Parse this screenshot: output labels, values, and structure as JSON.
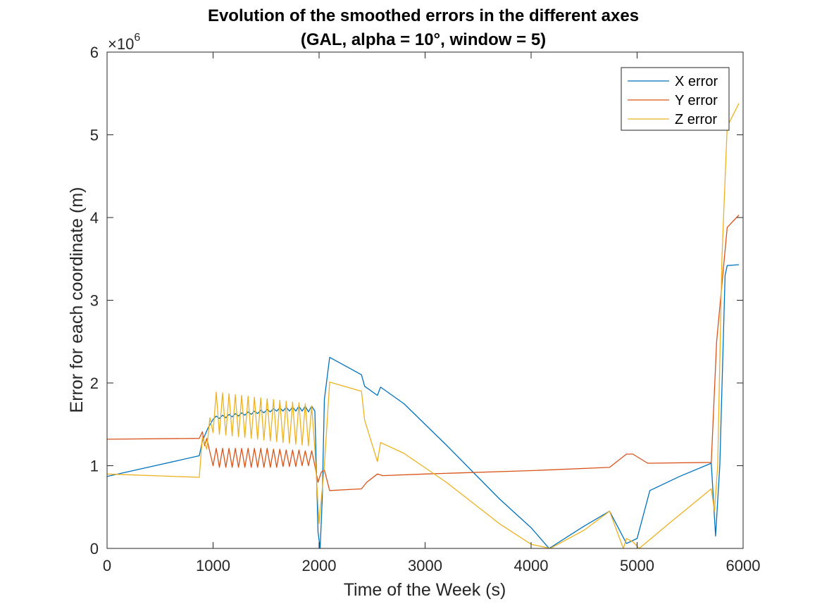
{
  "chart_data": {
    "type": "line",
    "title": "Evolution of the smoothed errors in the different axes",
    "subtitle": "(GAL, alpha = 10°, window = 5)",
    "xlabel": "Time of the Week (s)",
    "ylabel": "Error for each coordinate (m)",
    "xlim": [
      0,
      6000
    ],
    "ylim": [
      0,
      6000000
    ],
    "xticks": [
      "0",
      "1000",
      "2000",
      "3000",
      "4000",
      "5000",
      "6000"
    ],
    "yticks": [
      "0",
      "1",
      "2",
      "3",
      "4",
      "5",
      "6"
    ],
    "exponent_base": "×10",
    "exponent_power": "6",
    "grid": false,
    "legend_position": "top-right",
    "series": [
      {
        "name": "X error",
        "color": "#0072BD",
        "points": [
          [
            0,
            870000
          ],
          [
            870,
            1120000
          ],
          [
            900,
            1300000
          ],
          [
            950,
            1450000
          ],
          [
            1000,
            1560000
          ],
          [
            1030,
            1600000
          ],
          [
            1060,
            1570000
          ],
          [
            1090,
            1610000
          ],
          [
            1120,
            1580000
          ],
          [
            1150,
            1620000
          ],
          [
            1180,
            1590000
          ],
          [
            1210,
            1630000
          ],
          [
            1240,
            1600000
          ],
          [
            1270,
            1640000
          ],
          [
            1300,
            1610000
          ],
          [
            1330,
            1650000
          ],
          [
            1360,
            1620000
          ],
          [
            1390,
            1660000
          ],
          [
            1420,
            1630000
          ],
          [
            1450,
            1670000
          ],
          [
            1480,
            1640000
          ],
          [
            1510,
            1680000
          ],
          [
            1540,
            1650000
          ],
          [
            1570,
            1690000
          ],
          [
            1600,
            1660000
          ],
          [
            1630,
            1700000
          ],
          [
            1660,
            1660000
          ],
          [
            1690,
            1710000
          ],
          [
            1720,
            1660000
          ],
          [
            1750,
            1710000
          ],
          [
            1780,
            1660000
          ],
          [
            1810,
            1720000
          ],
          [
            1840,
            1660000
          ],
          [
            1870,
            1720000
          ],
          [
            1900,
            1650000
          ],
          [
            1930,
            1720000
          ],
          [
            1960,
            1660000
          ],
          [
            1990,
            200000
          ],
          [
            2010,
            0
          ],
          [
            2030,
            600000
          ],
          [
            2050,
            1800000
          ],
          [
            2100,
            2310000
          ],
          [
            2400,
            2100000
          ],
          [
            2430,
            1960000
          ],
          [
            2550,
            1850000
          ],
          [
            2580,
            1950000
          ],
          [
            2800,
            1750000
          ],
          [
            3200,
            1250000
          ],
          [
            3700,
            600000
          ],
          [
            4000,
            250000
          ],
          [
            4170,
            0
          ],
          [
            4500,
            270000
          ],
          [
            4740,
            450000
          ],
          [
            4900,
            60000
          ],
          [
            5000,
            120000
          ],
          [
            5120,
            700000
          ],
          [
            5400,
            870000
          ],
          [
            5700,
            1030000
          ],
          [
            5740,
            150000
          ],
          [
            5780,
            1000000
          ],
          [
            5830,
            3300000
          ],
          [
            5850,
            3420000
          ],
          [
            5960,
            3430000
          ]
        ]
      },
      {
        "name": "Y error",
        "color": "#D95319",
        "points": [
          [
            0,
            1320000
          ],
          [
            870,
            1330000
          ],
          [
            900,
            1410000
          ],
          [
            920,
            1240000
          ],
          [
            940,
            1330000
          ],
          [
            1000,
            1000000
          ],
          [
            1030,
            1210000
          ],
          [
            1060,
            980000
          ],
          [
            1090,
            1210000
          ],
          [
            1120,
            980000
          ],
          [
            1150,
            1210000
          ],
          [
            1180,
            980000
          ],
          [
            1210,
            1210000
          ],
          [
            1240,
            980000
          ],
          [
            1270,
            1210000
          ],
          [
            1300,
            980000
          ],
          [
            1330,
            1210000
          ],
          [
            1360,
            980000
          ],
          [
            1390,
            1210000
          ],
          [
            1420,
            980000
          ],
          [
            1450,
            1210000
          ],
          [
            1480,
            980000
          ],
          [
            1510,
            1210000
          ],
          [
            1540,
            980000
          ],
          [
            1570,
            1200000
          ],
          [
            1600,
            980000
          ],
          [
            1630,
            1200000
          ],
          [
            1660,
            990000
          ],
          [
            1690,
            1190000
          ],
          [
            1720,
            990000
          ],
          [
            1750,
            1190000
          ],
          [
            1780,
            990000
          ],
          [
            1810,
            1190000
          ],
          [
            1840,
            1000000
          ],
          [
            1870,
            1180000
          ],
          [
            1900,
            1000000
          ],
          [
            1930,
            1180000
          ],
          [
            1960,
            1000000
          ],
          [
            1990,
            800000
          ],
          [
            2020,
            920000
          ],
          [
            2050,
            950000
          ],
          [
            2100,
            700000
          ],
          [
            2400,
            720000
          ],
          [
            2450,
            800000
          ],
          [
            2550,
            900000
          ],
          [
            2600,
            880000
          ],
          [
            3000,
            900000
          ],
          [
            4000,
            940000
          ],
          [
            4740,
            980000
          ],
          [
            4900,
            1140000
          ],
          [
            4960,
            1140000
          ],
          [
            5100,
            1030000
          ],
          [
            5700,
            1040000
          ],
          [
            5750,
            2500000
          ],
          [
            5850,
            3880000
          ],
          [
            5960,
            4030000
          ]
        ]
      },
      {
        "name": "Z error",
        "color": "#EDB120",
        "points": [
          [
            0,
            900000
          ],
          [
            870,
            860000
          ],
          [
            900,
            1350000
          ],
          [
            940,
            1200000
          ],
          [
            970,
            1580000
          ],
          [
            1000,
            1400000
          ],
          [
            1030,
            1890000
          ],
          [
            1060,
            1380000
          ],
          [
            1090,
            1880000
          ],
          [
            1120,
            1370000
          ],
          [
            1150,
            1870000
          ],
          [
            1180,
            1360000
          ],
          [
            1210,
            1860000
          ],
          [
            1240,
            1350000
          ],
          [
            1270,
            1850000
          ],
          [
            1300,
            1340000
          ],
          [
            1330,
            1840000
          ],
          [
            1360,
            1330000
          ],
          [
            1390,
            1830000
          ],
          [
            1420,
            1320000
          ],
          [
            1450,
            1820000
          ],
          [
            1480,
            1310000
          ],
          [
            1510,
            1810000
          ],
          [
            1540,
            1300000
          ],
          [
            1570,
            1800000
          ],
          [
            1600,
            1290000
          ],
          [
            1630,
            1790000
          ],
          [
            1660,
            1280000
          ],
          [
            1690,
            1780000
          ],
          [
            1720,
            1270000
          ],
          [
            1750,
            1770000
          ],
          [
            1780,
            1260000
          ],
          [
            1810,
            1760000
          ],
          [
            1840,
            1250000
          ],
          [
            1870,
            1750000
          ],
          [
            1900,
            1240000
          ],
          [
            1930,
            1720000
          ],
          [
            1960,
            1200000
          ],
          [
            2000,
            300000
          ],
          [
            2050,
            1000000
          ],
          [
            2100,
            2010000
          ],
          [
            2400,
            1900000
          ],
          [
            2430,
            1550000
          ],
          [
            2550,
            1050000
          ],
          [
            2580,
            1280000
          ],
          [
            2800,
            1150000
          ],
          [
            3200,
            800000
          ],
          [
            3700,
            300000
          ],
          [
            4000,
            50000
          ],
          [
            4180,
            0
          ],
          [
            4500,
            220000
          ],
          [
            4740,
            450000
          ],
          [
            4870,
            0
          ],
          [
            4900,
            120000
          ],
          [
            4960,
            80000
          ],
          [
            5020,
            0
          ],
          [
            5300,
            300000
          ],
          [
            5700,
            720000
          ],
          [
            5730,
            450000
          ],
          [
            5760,
            1000000
          ],
          [
            5800,
            3500000
          ],
          [
            5850,
            5100000
          ],
          [
            5960,
            5380000
          ]
        ]
      }
    ]
  }
}
